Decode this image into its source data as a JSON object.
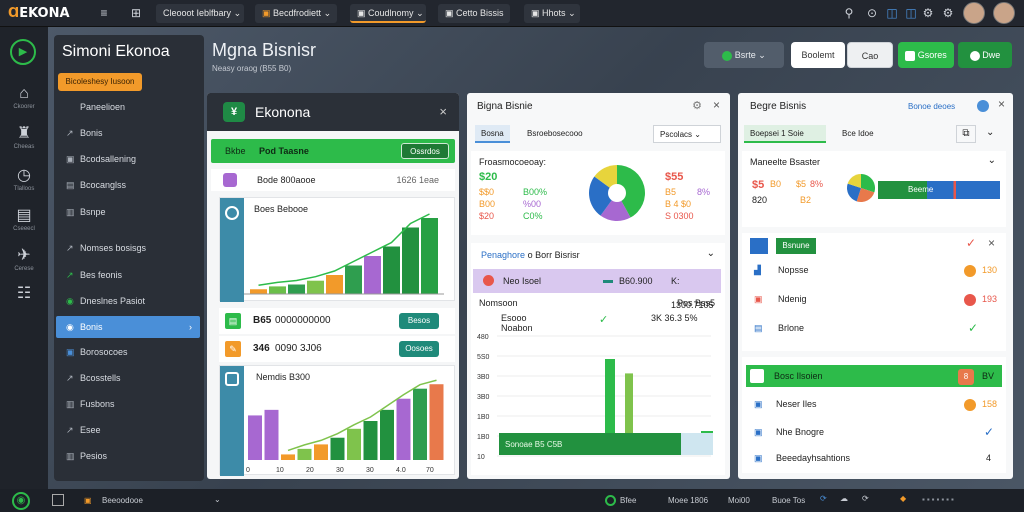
{
  "topbar": {
    "logo_icon": "Ɑ",
    "logo_text": "EKONA",
    "hamburger_glyph": "≡",
    "grid_glyph": "⊞",
    "tabs": [
      {
        "label": "Cleooot Ieblfbary",
        "chev": "⌄"
      },
      {
        "label": "Becdfrodiett",
        "chev": "⌄"
      },
      {
        "label": "Coudlnomy",
        "chev": "⌄"
      },
      {
        "label": "Cetto Bissis",
        "chev": "⌄"
      },
      {
        "label": "Hhots",
        "chev": "⌄"
      }
    ],
    "icon_glyphs": [
      "⚲",
      "⊙",
      "◫",
      "⚙",
      "⚙"
    ]
  },
  "rail": {
    "logo": "▶",
    "items": [
      {
        "glyph": "⌂",
        "label": "Ckoorer"
      },
      {
        "glyph": "♜",
        "label": "Cheeas"
      },
      {
        "glyph": "◷",
        "label": "Tlalloos"
      },
      {
        "glyph": "▤",
        "label": "Cseeecl"
      },
      {
        "glyph": "✈",
        "label": "Cerese"
      },
      {
        "glyph": "☷",
        "label": ""
      }
    ]
  },
  "sidebar": {
    "title": "Simoni Ekonoa",
    "action_button": "Bicoleshesy Iusoon",
    "items": [
      {
        "label": "Paneelioen",
        "icon": ""
      },
      {
        "label": "Bonis",
        "icon": "↗"
      },
      {
        "label": "Bcodsallening",
        "icon": "▣"
      },
      {
        "label": "Bcocanglss",
        "icon": "▤"
      },
      {
        "label": "Bsnpe",
        "icon": "▥"
      },
      {
        "label": "Nomses bosisgs",
        "icon": "↗"
      },
      {
        "label": "Bes feonis",
        "icon": "↗"
      },
      {
        "label": "Dneslnes Pasiot",
        "icon": "◉"
      },
      {
        "label": "Bonis",
        "icon": "◉",
        "chev": "›"
      },
      {
        "label": "Borosocoes",
        "icon": "▣"
      },
      {
        "label": "Bcosstells",
        "icon": "↗"
      },
      {
        "label": "Fusbons",
        "icon": "▥"
      },
      {
        "label": "Esee",
        "icon": "↗"
      },
      {
        "label": "Pesios",
        "icon": "▥"
      }
    ]
  },
  "header": {
    "title": "Mgna Bisnisr",
    "subtitle": "Neasy oraog (B55 B0)",
    "select_label": "Bsrte",
    "buttons": [
      "Boolemt",
      "Cao",
      "Gsores",
      "Dwe"
    ]
  },
  "panel1": {
    "title": "Ekonona",
    "logo": "¥",
    "close": "×",
    "greenbar": {
      "label": "Bkbe",
      "value": "Pod Taasne",
      "button": "Ossrdos"
    },
    "kpi_row": {
      "value": "Bode 800aooe",
      "right": "1626 1eae"
    },
    "chart1_title": "Boes Bebooe",
    "chart1_values": [
      5,
      8,
      10,
      14,
      20,
      30,
      40,
      50,
      70,
      80
    ],
    "chart1_colors": [
      "#f29a2a",
      "#6bbf4a",
      "#2f9e4f",
      "#7fc34c",
      "#f29a2a",
      "#2f9e4f",
      "#a768d1",
      "#22913f",
      "#22913f",
      "#27a044"
    ],
    "stats": [
      {
        "value": "B65",
        "text": "0000000000",
        "button": "Besos"
      },
      {
        "value": "346",
        "text": "0090 3J06",
        "button": "Oosoes"
      }
    ],
    "chart2_title": "Nemdis B300",
    "chart2_values": [
      40,
      45,
      5,
      10,
      14,
      20,
      28,
      35,
      45,
      55,
      64,
      68
    ],
    "chart2_colors": [
      "#a768d1",
      "#a768d1",
      "#f29a2a",
      "#7fc34c",
      "#f29a2a",
      "#22913f",
      "#7fc34c",
      "#22913f",
      "#22913f",
      "#a768d1",
      "#2f9e4f",
      "#e8794b"
    ],
    "chart2_x": [
      "0",
      "10",
      "20",
      "30",
      "30",
      "4.0",
      "70"
    ]
  },
  "panel2": {
    "title": "Bigna Bisnie",
    "tabs": [
      "Bosna",
      "Bsroebosecooo"
    ],
    "dropdown": "Pscolacs",
    "donut_title": "Froasmocoeoay:",
    "donut_left": [
      [
        "$20",
        ""
      ],
      [
        "$$0",
        "B00%"
      ],
      [
        "B00",
        "%00"
      ],
      [
        "$20",
        "C0%"
      ]
    ],
    "donut_right": [
      "$55",
      "B5",
      "B 4 $0",
      "S 0300"
    ],
    "donut_right_pct": [
      "",
      "",
      "8%",
      ""
    ],
    "donut_slices": [
      {
        "label": "green",
        "value": 42,
        "color": "#2dbb4a"
      },
      {
        "label": "purple",
        "value": 18,
        "color": "#a768d1"
      },
      {
        "label": "blue",
        "value": 25,
        "color": "#2a6fc6"
      },
      {
        "label": "yellow",
        "value": 15,
        "color": "#e7d43c"
      }
    ],
    "section_title": "Penaghore",
    "section_sub": "o Borr Bisrisr",
    "highlight_row": {
      "label": "Neo Isoel",
      "value": "B60.900",
      "right": "K: 1300.7105"
    },
    "row2": {
      "label": "Nomsoon",
      "right": "Pos Bss5"
    },
    "row3": {
      "label": "Esooo",
      "sub": "Noabon",
      "check": "✓",
      "right": "3K 36.3 5%"
    },
    "y_axis": [
      "480",
      "5S0",
      "3B0",
      "3B0",
      "1B0",
      "1B0",
      "10"
    ],
    "bar_footer": "Sonoae B5 C5B",
    "bars": [
      {
        "value": 10,
        "color": "#22913f"
      },
      {
        "value": 80,
        "color": "#2dbb4a"
      },
      {
        "value": 68,
        "color": "#7fc34c"
      },
      {
        "value": 20,
        "color": "#2dbb4a"
      }
    ]
  },
  "panel3": {
    "title": "Begre Bisnis",
    "link": "Bonoe deoes",
    "tabs": [
      "Boepsei 1 Soie",
      "Bce Idoe"
    ],
    "section": "Maneelte Bsaster",
    "kpis": [
      "$5",
      "B0",
      "$5",
      "8%",
      "820",
      "B2"
    ],
    "mini_slices": [
      {
        "value": 30,
        "color": "#2dbb4a"
      },
      {
        "value": 25,
        "color": "#e8794b"
      },
      {
        "value": 25,
        "color": "#2a6fc6"
      },
      {
        "value": 20,
        "color": "#e7d43c"
      }
    ],
    "bar_label": "Beeme",
    "list1_header": "Bsnune",
    "list1": [
      {
        "label": "Nopsse",
        "badge": "130",
        "badge_color": "#f29a2a"
      },
      {
        "label": "Ndenig",
        "badge": "193",
        "badge_color": "#e8574b"
      },
      {
        "label": "Brlone",
        "badge": "",
        "check": "✓"
      }
    ],
    "green_row": {
      "label": "Bosc Ilsoien",
      "badge": "8",
      "right": "BV"
    },
    "list2": [
      {
        "label": "Neser Iles",
        "badge": "158",
        "badge_color": "#f29a2a"
      },
      {
        "label": "Nhe Bnogre",
        "check": "✓"
      },
      {
        "label": "Beeedayhsahtions",
        "right": "4"
      }
    ]
  },
  "bottombar": {
    "left": "Beeoodooe",
    "status_items": [
      "Bfee",
      "Moee 1806",
      "Moi00",
      "Buoe Tos"
    ],
    "icon": "◉"
  }
}
